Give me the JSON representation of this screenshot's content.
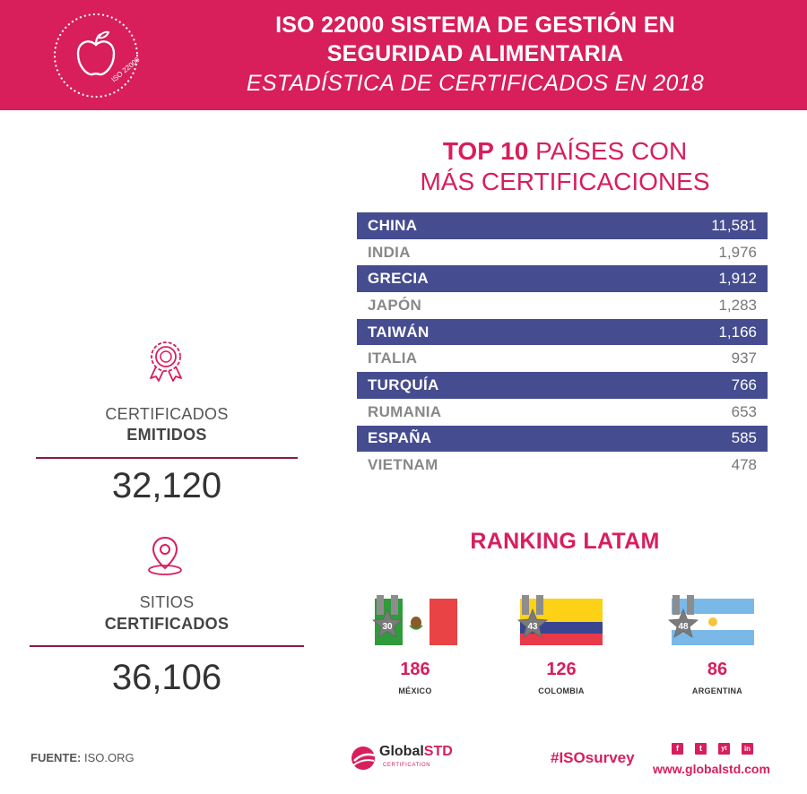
{
  "header": {
    "badge_text": "ISO 22000",
    "title_line1": "ISO 22000 SISTEMA DE GESTIÓN EN",
    "title_line2": "SEGURIDAD ALIMENTARIA",
    "subtitle": "ESTADÍSTICA DE CERTIFICADOS EN 2018"
  },
  "top10": {
    "title_bold": "TOP 10",
    "title_rest": " PAÍSES CON",
    "title_line2": "MÁS CERTIFICACIONES",
    "rows": [
      {
        "country": "CHINA",
        "value": "11,581"
      },
      {
        "country": "INDIA",
        "value": "1,976"
      },
      {
        "country": "GRECIA",
        "value": "1,912"
      },
      {
        "country": "JAPÓN",
        "value": "1,283"
      },
      {
        "country": "TAIWÁN",
        "value": "1,166"
      },
      {
        "country": "ITALIA",
        "value": "937"
      },
      {
        "country": "TURQUÍA",
        "value": "766"
      },
      {
        "country": "RUMANIA",
        "value": "653"
      },
      {
        "country": "ESPAÑA",
        "value": "585"
      },
      {
        "country": "VIETNAM",
        "value": "478"
      }
    ]
  },
  "certificates": {
    "label_line1": "CERTIFICADOS",
    "label_line2": "EMITIDOS",
    "value": "32,120",
    "icon": "award-ribbon-icon"
  },
  "sites": {
    "label_line1": "SITIOS",
    "label_line2": "CERTIFICADOS",
    "value": "36,106",
    "icon": "location-pin-icon"
  },
  "latam": {
    "title": "RANKING LATAM",
    "items": [
      {
        "rank": "30",
        "value": "186",
        "country": "MÉXICO"
      },
      {
        "rank": "43",
        "value": "126",
        "country": "COLOMBIA"
      },
      {
        "rank": "48",
        "value": "86",
        "country": "ARGENTINA"
      }
    ]
  },
  "footer": {
    "source_label": "FUENTE:",
    "source_value": " ISO.ORG",
    "logo_main": "Global",
    "logo_std": "STD",
    "logo_sub": "CERTIFICATION",
    "hashtag": "#ISOsurvey",
    "social": [
      "f",
      "t",
      "yt",
      "in"
    ],
    "website": "www.globalstd.com"
  },
  "colors": {
    "brand_pink": "#d81e5b",
    "table_dark": "#454c8f",
    "divider": "#8a1b3d"
  }
}
